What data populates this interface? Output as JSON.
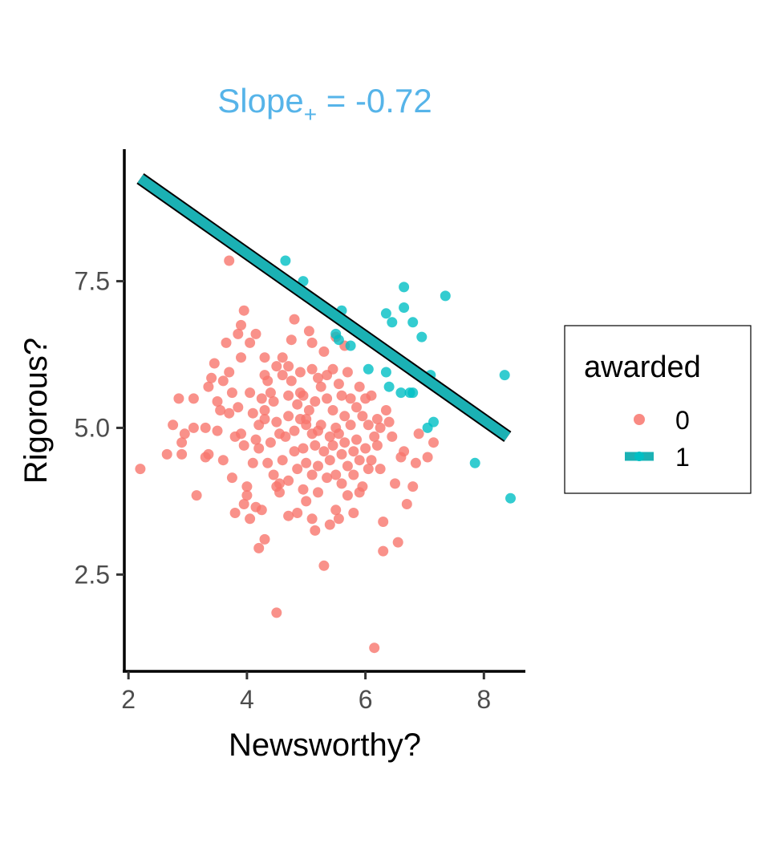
{
  "chart_data": {
    "type": "scatter",
    "title_main": "Slope",
    "title_sub": "+",
    "title_value": " = -0.72",
    "xlabel": "Newsworthy?",
    "ylabel": "Rigorous?",
    "xlim": [
      1.93,
      8.7
    ],
    "ylim": [
      0.85,
      9.75
    ],
    "x_ticks": [
      2,
      4,
      6,
      8
    ],
    "y_ticks": [
      2.5,
      5.0,
      7.5
    ],
    "x_tick_labels": [
      "2",
      "4",
      "6",
      "8"
    ],
    "y_tick_labels": [
      "2.5",
      "5.0",
      "7.5"
    ],
    "legend": {
      "title": "awarded",
      "placement": "right",
      "entries": [
        {
          "label": "0",
          "color": "#F8766D"
        },
        {
          "label": "1",
          "color": "#00BFC4"
        }
      ]
    },
    "colors": {
      "awarded_0": "#F8766D",
      "awarded_1": "#00BFC4",
      "fit_line": "#1BB1B4",
      "title": "#56B4E9"
    },
    "fit_line": {
      "x": [
        2.2,
        8.4
      ],
      "y": [
        9.25,
        4.85
      ]
    },
    "series": [
      {
        "name": "0",
        "points": [
          [
            2.2,
            4.3
          ],
          [
            2.65,
            4.55
          ],
          [
            2.75,
            5.05
          ],
          [
            2.9,
            4.75
          ],
          [
            2.9,
            4.55
          ],
          [
            2.95,
            4.9
          ],
          [
            2.85,
            5.5
          ],
          [
            3.1,
            5.5
          ],
          [
            3.1,
            5.0
          ],
          [
            3.15,
            3.85
          ],
          [
            3.3,
            5.0
          ],
          [
            3.35,
            5.7
          ],
          [
            3.4,
            5.85
          ],
          [
            3.35,
            4.55
          ],
          [
            3.5,
            4.95
          ],
          [
            3.5,
            5.45
          ],
          [
            3.55,
            5.3
          ],
          [
            3.6,
            4.45
          ],
          [
            3.45,
            6.1
          ],
          [
            3.65,
            6.45
          ],
          [
            3.6,
            5.8
          ],
          [
            3.7,
            5.95
          ],
          [
            3.75,
            5.6
          ],
          [
            3.7,
            5.25
          ],
          [
            3.8,
            4.85
          ],
          [
            3.75,
            4.15
          ],
          [
            3.8,
            3.55
          ],
          [
            3.7,
            7.85
          ],
          [
            3.85,
            6.6
          ],
          [
            3.9,
            6.75
          ],
          [
            3.95,
            7.0
          ],
          [
            3.9,
            6.2
          ],
          [
            3.85,
            5.35
          ],
          [
            3.9,
            4.9
          ],
          [
            3.95,
            4.7
          ],
          [
            4.0,
            4.0
          ],
          [
            3.95,
            3.7
          ],
          [
            4.05,
            6.45
          ],
          [
            4.05,
            5.6
          ],
          [
            4.1,
            5.25
          ],
          [
            4.1,
            4.4
          ],
          [
            4.15,
            4.8
          ],
          [
            4.0,
            3.85
          ],
          [
            4.05,
            3.45
          ],
          [
            4.15,
            3.65
          ],
          [
            4.2,
            5.05
          ],
          [
            4.25,
            5.5
          ],
          [
            4.2,
            4.65
          ],
          [
            4.25,
            3.6
          ],
          [
            4.2,
            2.95
          ],
          [
            4.3,
            3.1
          ],
          [
            4.3,
            6.2
          ],
          [
            4.3,
            5.9
          ],
          [
            4.3,
            5.15
          ],
          [
            4.35,
            4.4
          ],
          [
            4.4,
            4.75
          ],
          [
            4.4,
            5.6
          ],
          [
            4.45,
            4.2
          ],
          [
            4.5,
            5.1
          ],
          [
            4.45,
            5.45
          ],
          [
            4.5,
            6.05
          ],
          [
            4.5,
            4.0
          ],
          [
            4.55,
            4.9
          ],
          [
            4.55,
            4.05
          ],
          [
            4.55,
            3.9
          ],
          [
            4.6,
            6.2
          ],
          [
            4.6,
            5.9
          ],
          [
            4.6,
            4.45
          ],
          [
            4.65,
            4.85
          ],
          [
            4.7,
            6.05
          ],
          [
            4.7,
            5.55
          ],
          [
            4.7,
            5.2
          ],
          [
            4.7,
            4.1
          ],
          [
            4.7,
            3.5
          ],
          [
            4.75,
            6.5
          ],
          [
            4.8,
            6.85
          ],
          [
            4.75,
            5.8
          ],
          [
            4.8,
            4.95
          ],
          [
            4.8,
            4.6
          ],
          [
            4.85,
            5.4
          ],
          [
            4.85,
            4.3
          ],
          [
            4.85,
            3.55
          ],
          [
            4.9,
            5.95
          ],
          [
            4.9,
            5.6
          ],
          [
            4.9,
            5.15
          ],
          [
            4.95,
            5.55
          ],
          [
            4.95,
            4.65
          ],
          [
            4.95,
            3.95
          ],
          [
            5.0,
            5.05
          ],
          [
            5.0,
            4.4
          ],
          [
            5.0,
            3.75
          ],
          [
            5.05,
            6.65
          ],
          [
            5.1,
            6.45
          ],
          [
            5.1,
            6.0
          ],
          [
            5.05,
            5.3
          ],
          [
            5.1,
            4.9
          ],
          [
            5.1,
            4.2
          ],
          [
            5.1,
            3.45
          ],
          [
            5.15,
            3.25
          ],
          [
            5.15,
            5.45
          ],
          [
            5.15,
            4.7
          ],
          [
            5.2,
            4.95
          ],
          [
            5.2,
            4.35
          ],
          [
            5.2,
            3.9
          ],
          [
            5.25,
            5.7
          ],
          [
            5.25,
            5.05
          ],
          [
            5.3,
            4.6
          ],
          [
            5.3,
            2.65
          ],
          [
            5.3,
            6.3
          ],
          [
            5.35,
            5.9
          ],
          [
            5.35,
            5.5
          ],
          [
            5.35,
            4.15
          ],
          [
            5.4,
            4.85
          ],
          [
            5.4,
            4.45
          ],
          [
            5.4,
            3.35
          ],
          [
            5.45,
            6.0
          ],
          [
            5.45,
            5.3
          ],
          [
            5.45,
            4.7
          ],
          [
            5.5,
            6.55
          ],
          [
            5.5,
            5.0
          ],
          [
            5.5,
            4.2
          ],
          [
            5.5,
            3.6
          ],
          [
            5.55,
            5.75
          ],
          [
            5.55,
            4.9
          ],
          [
            5.55,
            3.45
          ],
          [
            5.6,
            5.55
          ],
          [
            5.6,
            4.55
          ],
          [
            5.6,
            4.05
          ],
          [
            5.65,
            5.2
          ],
          [
            5.65,
            4.75
          ],
          [
            5.7,
            5.95
          ],
          [
            5.7,
            4.35
          ],
          [
            5.7,
            3.85
          ],
          [
            5.75,
            5.5
          ],
          [
            5.75,
            5.05
          ],
          [
            5.8,
            4.6
          ],
          [
            5.8,
            4.2
          ],
          [
            5.8,
            3.55
          ],
          [
            5.85,
            5.35
          ],
          [
            5.85,
            4.8
          ],
          [
            5.9,
            5.7
          ],
          [
            5.9,
            4.45
          ],
          [
            5.9,
            3.9
          ],
          [
            5.95,
            5.2
          ],
          [
            5.95,
            4.0
          ],
          [
            6.0,
            5.5
          ],
          [
            6.0,
            4.65
          ],
          [
            6.05,
            5.05
          ],
          [
            6.05,
            4.3
          ],
          [
            6.1,
            5.55
          ],
          [
            6.1,
            4.45
          ],
          [
            6.15,
            4.85
          ],
          [
            6.15,
            1.25
          ],
          [
            6.2,
            5.15
          ],
          [
            6.2,
            4.7
          ],
          [
            6.25,
            5.0
          ],
          [
            6.25,
            4.3
          ],
          [
            6.3,
            2.9
          ],
          [
            6.3,
            3.4
          ],
          [
            6.35,
            5.3
          ],
          [
            6.4,
            5.1
          ],
          [
            6.45,
            4.85
          ],
          [
            6.5,
            4.05
          ],
          [
            6.55,
            3.05
          ],
          [
            6.6,
            4.5
          ],
          [
            6.65,
            4.6
          ],
          [
            6.7,
            3.7
          ],
          [
            6.8,
            4.0
          ],
          [
            6.85,
            4.4
          ],
          [
            6.9,
            4.9
          ],
          [
            7.05,
            4.5
          ],
          [
            7.15,
            4.75
          ],
          [
            4.5,
            1.85
          ],
          [
            3.3,
            4.5
          ],
          [
            4.15,
            6.6
          ],
          [
            5.2,
            5.85
          ],
          [
            4.3,
            5.3
          ],
          [
            5.65,
            6.4
          ],
          [
            4.35,
            5.8
          ],
          [
            5.0,
            5.15
          ]
        ]
      },
      {
        "name": "1",
        "points": [
          [
            4.65,
            7.85
          ],
          [
            4.95,
            7.5
          ],
          [
            5.6,
            7.0
          ],
          [
            5.5,
            6.6
          ],
          [
            5.55,
            6.5
          ],
          [
            5.75,
            6.4
          ],
          [
            6.05,
            6.0
          ],
          [
            6.35,
            6.95
          ],
          [
            6.45,
            6.8
          ],
          [
            6.65,
            7.4
          ],
          [
            6.65,
            7.05
          ],
          [
            6.8,
            6.8
          ],
          [
            6.35,
            5.95
          ],
          [
            6.4,
            5.7
          ],
          [
            6.6,
            5.6
          ],
          [
            6.75,
            5.6
          ],
          [
            6.8,
            5.6
          ],
          [
            6.95,
            6.55
          ],
          [
            7.1,
            5.9
          ],
          [
            7.05,
            5.0
          ],
          [
            7.15,
            5.1
          ],
          [
            7.35,
            7.25
          ],
          [
            7.85,
            4.4
          ],
          [
            8.35,
            5.9
          ],
          [
            8.45,
            3.8
          ]
        ]
      }
    ]
  }
}
